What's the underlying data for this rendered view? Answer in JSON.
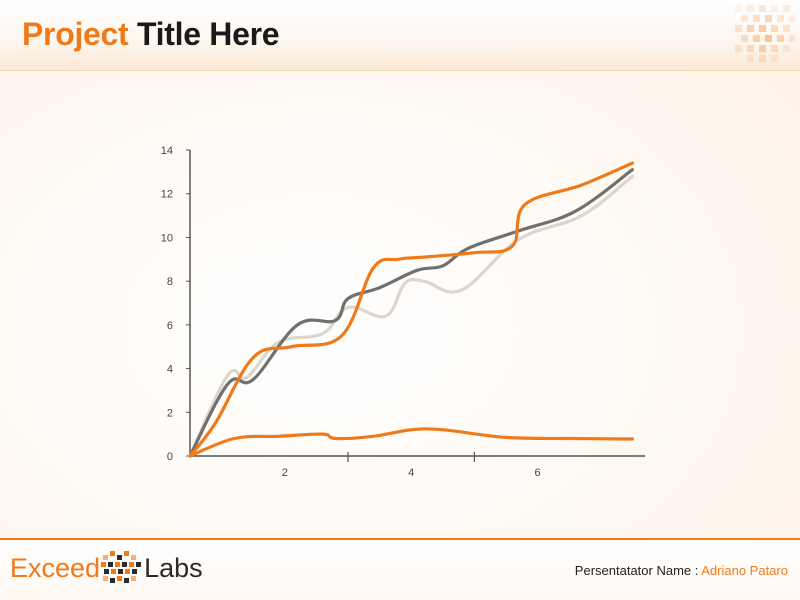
{
  "header": {
    "title_accent": "Project",
    "title_rest": "Title Here"
  },
  "footer": {
    "brand_part1": "Exceed",
    "brand_part2": "Labs",
    "presenter_label": "Persentatator Name :",
    "presenter_name": "Adriano Pataro"
  },
  "colors": {
    "accent": "#f07a1a",
    "dark_gray": "#707070",
    "light_gray": "#dcd6cc"
  },
  "chart_data": {
    "type": "line",
    "title": "",
    "xlabel": "",
    "ylabel": "",
    "xlim": [
      0,
      7.2
    ],
    "ylim": [
      0,
      14
    ],
    "yticks": [
      0,
      2,
      4,
      6,
      8,
      10,
      12,
      14
    ],
    "xtick_labels": [
      {
        "value": 1.5,
        "label": "2"
      },
      {
        "value": 3.5,
        "label": "4"
      },
      {
        "value": 5.5,
        "label": "6"
      }
    ],
    "xtick_marks": [
      2.5,
      4.5
    ],
    "grid": false,
    "legend": "none",
    "series": [
      {
        "color": "#dcd6cc",
        "x": [
          0,
          0.6,
          0.9,
          1.4,
          2.1,
          2.5,
          3.1,
          3.4,
          3.7,
          4.3,
          5.2,
          6.2,
          7.0
        ],
        "y": [
          0,
          3.7,
          3.6,
          5.2,
          5.6,
          6.8,
          6.4,
          7.9,
          8.0,
          7.6,
          9.9,
          11.0,
          12.8
        ]
      },
      {
        "color": "#707070",
        "x": [
          0,
          0.6,
          1.0,
          1.7,
          2.3,
          2.5,
          3.0,
          3.6,
          4.0,
          4.4,
          5.2,
          6.1,
          7.0
        ],
        "y": [
          0,
          3.3,
          3.5,
          6.0,
          6.2,
          7.2,
          7.7,
          8.5,
          8.7,
          9.5,
          10.3,
          11.2,
          13.1
        ]
      },
      {
        "color": "#f07a1a",
        "x": [
          0,
          0.4,
          1.0,
          1.6,
          2.4,
          2.9,
          3.3,
          3.7,
          4.5,
          5.1,
          5.3,
          6.2,
          7.0
        ],
        "y": [
          0,
          1.5,
          4.5,
          5.0,
          5.5,
          8.6,
          9.0,
          9.1,
          9.3,
          9.6,
          11.5,
          12.4,
          13.4
        ]
      },
      {
        "color": "#f07a1a",
        "x": [
          0,
          0.7,
          1.4,
          2.1,
          2.3,
          2.9,
          3.5,
          4.0,
          5.0,
          6.0,
          7.0
        ],
        "y": [
          0,
          0.8,
          0.9,
          1.0,
          0.8,
          0.9,
          1.2,
          1.2,
          0.85,
          0.8,
          0.78
        ]
      }
    ]
  }
}
